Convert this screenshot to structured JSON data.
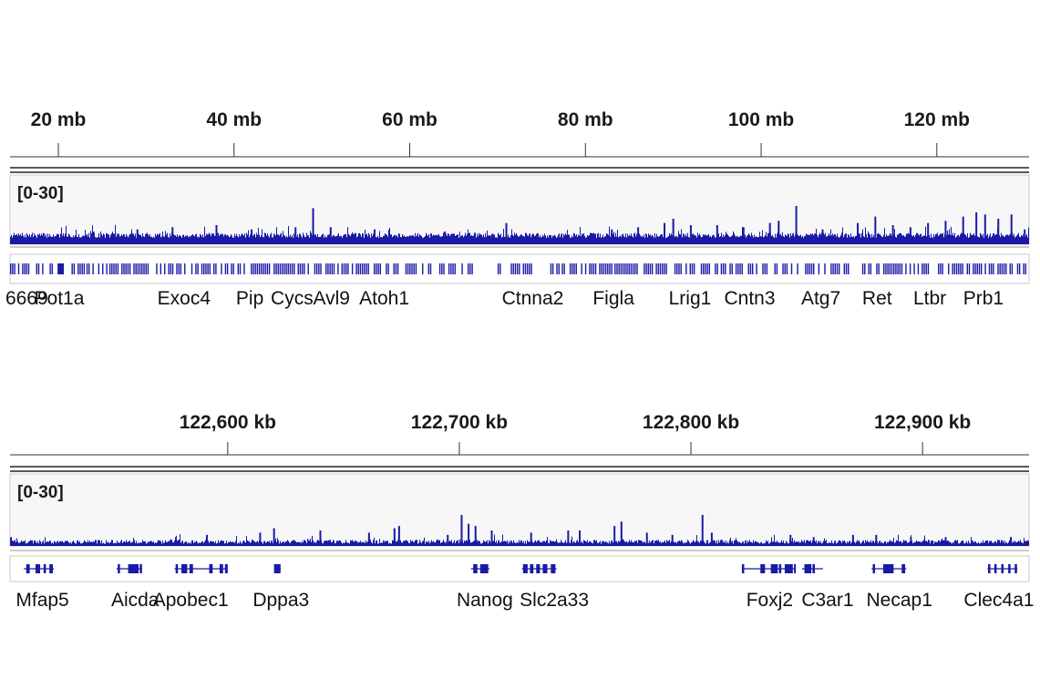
{
  "chart_data": [
    {
      "type": "area",
      "view": "chromosome-overview",
      "xunit": "mb",
      "xlim": [
        14.5,
        130.5
      ],
      "ticks": [
        {
          "value": 20,
          "label": "20 mb"
        },
        {
          "value": 40,
          "label": "40 mb"
        },
        {
          "value": 60,
          "label": "60 mb"
        },
        {
          "value": 80,
          "label": "80 mb"
        },
        {
          "value": 100,
          "label": "100 mb"
        },
        {
          "value": 120,
          "label": "120 mb"
        }
      ],
      "signal_track": {
        "data_range_label": "[0-30]",
        "ylim": [
          0,
          30
        ],
        "color": "#1a1aa6",
        "baseline": 3,
        "noise": 2.4,
        "peaks": [
          {
            "x": 24,
            "y": 6
          },
          {
            "x": 29,
            "y": 7
          },
          {
            "x": 33,
            "y": 8
          },
          {
            "x": 38,
            "y": 9
          },
          {
            "x": 42,
            "y": 7
          },
          {
            "x": 47,
            "y": 8
          },
          {
            "x": 49,
            "y": 17
          },
          {
            "x": 51,
            "y": 8
          },
          {
            "x": 56,
            "y": 7
          },
          {
            "x": 64,
            "y": 6
          },
          {
            "x": 71,
            "y": 10
          },
          {
            "x": 83,
            "y": 7
          },
          {
            "x": 86,
            "y": 8
          },
          {
            "x": 89,
            "y": 10
          },
          {
            "x": 90,
            "y": 12
          },
          {
            "x": 92,
            "y": 9
          },
          {
            "x": 95,
            "y": 9
          },
          {
            "x": 98,
            "y": 8
          },
          {
            "x": 101,
            "y": 10
          },
          {
            "x": 102,
            "y": 11
          },
          {
            "x": 104,
            "y": 18
          },
          {
            "x": 107,
            "y": 7
          },
          {
            "x": 111,
            "y": 10
          },
          {
            "x": 113,
            "y": 13
          },
          {
            "x": 115,
            "y": 9
          },
          {
            "x": 117,
            "y": 8
          },
          {
            "x": 119,
            "y": 10
          },
          {
            "x": 121,
            "y": 11
          },
          {
            "x": 123,
            "y": 13
          },
          {
            "x": 124.5,
            "y": 15
          },
          {
            "x": 125.5,
            "y": 14
          },
          {
            "x": 127,
            "y": 12
          },
          {
            "x": 128.5,
            "y": 14
          },
          {
            "x": 130,
            "y": 7
          }
        ]
      },
      "gene_blocks": [
        [
          14.5,
          18.5
        ],
        [
          19.0,
          20.5
        ],
        [
          19.8,
          20.6
        ],
        [
          21.5,
          22.9
        ],
        [
          23.2,
          24.0
        ],
        [
          24.3,
          25.5
        ],
        [
          25.8,
          30.5
        ],
        [
          30.9,
          34.5
        ],
        [
          34.9,
          38.0
        ],
        [
          38.5,
          40.0
        ],
        [
          40.4,
          41.5
        ],
        [
          41.9,
          44.0
        ],
        [
          44.5,
          48.5
        ],
        [
          48.9,
          50.0
        ],
        [
          50.4,
          53.0
        ],
        [
          53.4,
          55.5
        ],
        [
          55.9,
          57.5
        ],
        [
          57.9,
          59.0
        ],
        [
          59.5,
          61.0
        ],
        [
          61.4,
          62.5
        ],
        [
          62.9,
          64.0
        ],
        [
          64.4,
          65.5
        ],
        [
          65.9,
          67.5
        ],
        [
          70.0,
          70.3
        ],
        [
          71.5,
          74.0
        ],
        [
          76.0,
          77.0
        ],
        [
          77.3,
          77.9
        ],
        [
          78.2,
          79.0
        ],
        [
          79.5,
          83.0
        ],
        [
          83.3,
          86.0
        ],
        [
          86.4,
          89.5
        ],
        [
          89.9,
          91.0
        ],
        [
          91.4,
          92.5
        ],
        [
          92.9,
          95.0
        ],
        [
          95.4,
          96.0
        ],
        [
          96.4,
          98.0
        ],
        [
          98.5,
          99.5
        ],
        [
          99.9,
          101.0
        ],
        [
          101.5,
          103.0
        ],
        [
          103.4,
          104.5
        ],
        [
          105.0,
          106.0
        ],
        [
          106.5,
          107.5
        ],
        [
          107.9,
          109.0
        ],
        [
          109.4,
          110.0
        ],
        [
          111.5,
          113.5
        ],
        [
          113.9,
          116.5
        ],
        [
          116.9,
          119.5
        ],
        [
          119.9,
          123.0
        ],
        [
          123.4,
          126.5
        ],
        [
          126.9,
          128.5
        ],
        [
          128.9,
          130.5
        ]
      ],
      "genes": [
        {
          "label": "6669",
          "x": 16.4
        },
        {
          "label": "Pot1a",
          "x": 20.1
        },
        {
          "label": "Exoc4",
          "x": 34.3
        },
        {
          "label": "Pip",
          "x": 41.8
        },
        {
          "label": "Cycs",
          "x": 46.6
        },
        {
          "label": "Avl9",
          "x": 51.1
        },
        {
          "label": "Atoh1",
          "x": 57.1
        },
        {
          "label": "Ctnna2",
          "x": 74.0
        },
        {
          "label": "Figla",
          "x": 83.2
        },
        {
          "label": "Lrig1",
          "x": 91.9
        },
        {
          "label": "Cntn3",
          "x": 98.7
        },
        {
          "label": "Atg7",
          "x": 106.8
        },
        {
          "label": "Ret",
          "x": 113.2
        },
        {
          "label": "Ltbr",
          "x": 119.2
        },
        {
          "label": "Prb1",
          "x": 125.3
        }
      ]
    },
    {
      "type": "area",
      "view": "zoomed-region",
      "xunit": "kb",
      "xlim": [
        122506,
        122946
      ],
      "ticks": [
        {
          "value": 122600,
          "label": "122,600 kb"
        },
        {
          "value": 122700,
          "label": "122,700 kb"
        },
        {
          "value": 122800,
          "label": "122,800 kb"
        },
        {
          "value": 122900,
          "label": "122,900 kb"
        }
      ],
      "signal_track": {
        "data_range_label": "[0-30]",
        "ylim": [
          0,
          30
        ],
        "color": "#1a1aa6",
        "baseline": 1,
        "noise": 1.8,
        "peaks": [
          {
            "x": 122591,
            "y": 5
          },
          {
            "x": 122614,
            "y": 6
          },
          {
            "x": 122620,
            "y": 8
          },
          {
            "x": 122640,
            "y": 7
          },
          {
            "x": 122661,
            "y": 6
          },
          {
            "x": 122672,
            "y": 8
          },
          {
            "x": 122674,
            "y": 9
          },
          {
            "x": 122695,
            "y": 5
          },
          {
            "x": 122701,
            "y": 14
          },
          {
            "x": 122704,
            "y": 10
          },
          {
            "x": 122707,
            "y": 9
          },
          {
            "x": 122714,
            "y": 7
          },
          {
            "x": 122731,
            "y": 6
          },
          {
            "x": 122747,
            "y": 7
          },
          {
            "x": 122752,
            "y": 7
          },
          {
            "x": 122767,
            "y": 9
          },
          {
            "x": 122770,
            "y": 11
          },
          {
            "x": 122781,
            "y": 6
          },
          {
            "x": 122792,
            "y": 5
          },
          {
            "x": 122805,
            "y": 14
          },
          {
            "x": 122809,
            "y": 6
          },
          {
            "x": 122843,
            "y": 5
          },
          {
            "x": 122853,
            "y": 4
          },
          {
            "x": 122870,
            "y": 5
          },
          {
            "x": 122880,
            "y": 5
          },
          {
            "x": 122895,
            "y": 4
          },
          {
            "x": 122910,
            "y": 4
          }
        ]
      },
      "genes": [
        {
          "label": "Mfap5",
          "x": 122520,
          "segments": [
            [
              122512,
              122525
            ]
          ],
          "exons": [
            [
              122513,
              122514.5
            ],
            [
              122517,
              122519
            ],
            [
              122520.5,
              122521.5
            ],
            [
              122523,
              122524.5
            ]
          ]
        },
        {
          "label": "Aicda",
          "x": 122560,
          "segments": [
            [
              122552,
              122563
            ]
          ],
          "exons": [
            [
              122552.5,
              122553.5
            ],
            [
              122557,
              122561.5
            ],
            [
              122562,
              122563
            ]
          ]
        },
        {
          "label": "Apobec1",
          "x": 122584,
          "segments": [
            [
              122577,
              122600
            ]
          ],
          "exons": [
            [
              122577.5,
              122578.5
            ],
            [
              122580,
              122582.5
            ],
            [
              122583.5,
              122585
            ],
            [
              122592,
              122593.5
            ],
            [
              122596.5,
              122598
            ],
            [
              122598.8,
              122600
            ]
          ]
        },
        {
          "label": "Dppa3",
          "x": 122623,
          "segments": [
            [
              122620,
              122623
            ]
          ],
          "exons": [
            [
              122620,
              122622.8
            ]
          ]
        },
        {
          "label": "Nanog",
          "x": 122711,
          "segments": [
            [
              122705,
              122713
            ]
          ],
          "exons": [
            [
              122706,
              122707.8
            ],
            [
              122709,
              122712.5
            ]
          ]
        },
        {
          "label": "Slc2a33",
          "x": 122741,
          "segments": [
            [
              122727,
              122742
            ]
          ],
          "exons": [
            [
              122727.5,
              122729.5
            ],
            [
              122730.5,
              122732
            ],
            [
              122733.2,
              122734.8
            ],
            [
              122736,
              122738
            ],
            [
              122739.5,
              122741.5
            ]
          ]
        },
        {
          "label": "Foxj2",
          "x": 122834,
          "segments": [
            [
              122822,
              122845
            ]
          ],
          "exons": [
            [
              122822,
              122823
            ],
            [
              122830,
              122832
            ],
            [
              122834.5,
              122837.5
            ],
            [
              122838,
              122839
            ],
            [
              122840.5,
              122844
            ],
            [
              122844.5,
              122845
            ]
          ]
        },
        {
          "label": "C3ar1",
          "x": 122859,
          "segments": [
            [
              122848,
              122857
            ]
          ],
          "exons": [
            [
              122849,
              122852
            ],
            [
              122852.5,
              122853.5
            ]
          ]
        },
        {
          "label": "Necap1",
          "x": 122890,
          "segments": [
            [
              122878,
              122893
            ]
          ],
          "exons": [
            [
              122878.5,
              122879.5
            ],
            [
              122883,
              122887.5
            ],
            [
              122891,
              122892.5
            ]
          ]
        },
        {
          "label": "Clec4a1",
          "x": 122933,
          "segments": [
            [
              122928,
              122941
            ]
          ],
          "exons": [
            [
              122928.3,
              122929.3
            ],
            [
              122931,
              122932
            ],
            [
              122934,
              122935
            ],
            [
              122937,
              122938
            ],
            [
              122939.8,
              122940.8
            ]
          ]
        }
      ]
    }
  ]
}
